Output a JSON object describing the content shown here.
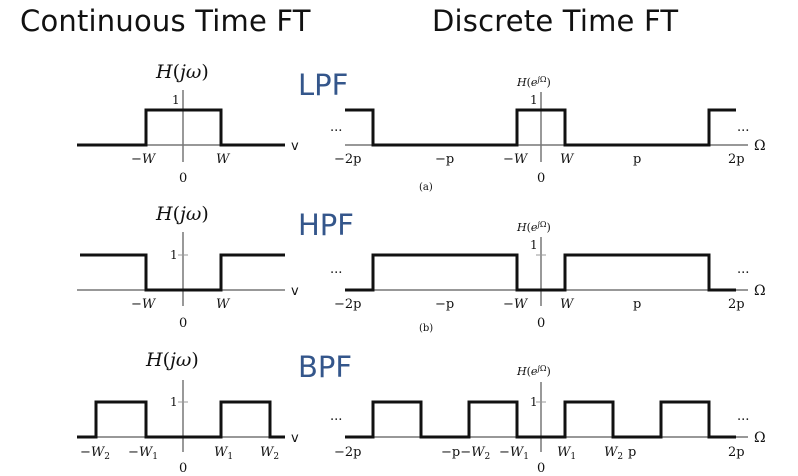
{
  "headings": {
    "continuous": "Continuous Time FT",
    "discrete": "Discrete Time FT"
  },
  "filters": [
    {
      "name": "LPF",
      "ct_title": "H(jω)",
      "ct_ticks": [
        "−W",
        "0",
        "W"
      ],
      "ct_axis": "v",
      "ct_one": "1",
      "dt_title": "H(e jΩ)",
      "dt_ticks": [
        "−2p",
        "−p",
        "−W",
        "0",
        "W",
        "p",
        "2p"
      ],
      "dt_axis": "Ω",
      "dt_one": "1",
      "caption": "(a)"
    },
    {
      "name": "HPF",
      "ct_title": "H(jω)",
      "ct_ticks": [
        "−W",
        "0",
        "W"
      ],
      "ct_axis": "v",
      "ct_one": "1",
      "dt_title": "H(e jΩ)",
      "dt_ticks": [
        "−2p",
        "−p",
        "−W",
        "0",
        "W",
        "p",
        "2p"
      ],
      "dt_axis": "Ω",
      "dt_one": "1",
      "caption": "(b)"
    },
    {
      "name": "BPF",
      "ct_title": "H(jω)",
      "ct_ticks": [
        "−W2",
        "−W1",
        "0",
        "W1",
        "W2"
      ],
      "ct_axis": "v",
      "ct_one": "1",
      "dt_title": "H(e jΩ)",
      "dt_ticks": [
        "−2p",
        "−p",
        "−W2",
        "−W1",
        "0",
        "W1",
        "W2",
        "2p"
      ],
      "dt_axis": "Ω",
      "dt_one": "1",
      "caption": ""
    }
  ],
  "ellipsis": "..."
}
